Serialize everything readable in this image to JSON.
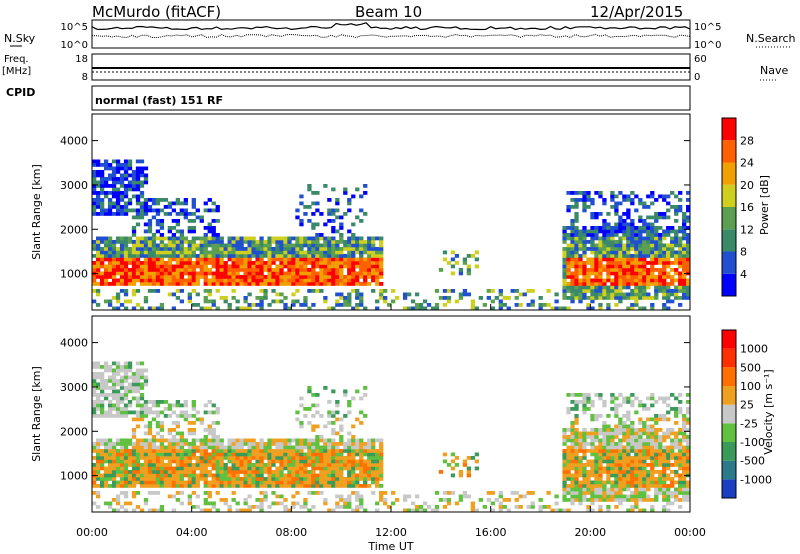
{
  "header": {
    "station": "McMurdo (fitACF)",
    "beam": "Beam 10",
    "date": "12/Apr/2015"
  },
  "top_panel": {
    "left_label": "N.Sky",
    "right_label": "N.Search",
    "tick_top": "10^5",
    "tick_bottom": "10^0",
    "freq_label": "Freq.",
    "freq_unit": "[MHz]",
    "freq_ticks": [
      "18",
      "8"
    ],
    "nave_label": "Nave",
    "nave_ticks": [
      "60",
      "0"
    ],
    "cpid_label": "CPID",
    "cpid_text": "normal (fast) 151 RF"
  },
  "chart_data": [
    {
      "type": "heatmap",
      "name": "power",
      "ylabel": "Slant Range [km]",
      "yticks": [
        1000,
        2000,
        3000,
        4000
      ],
      "ylim": [
        180,
        4600
      ],
      "xlim": [
        0,
        24
      ],
      "colorbar_label": "Power [dB]",
      "colorbar_ticks": [
        "28",
        "24",
        "20",
        "16",
        "12",
        "8",
        "4"
      ],
      "colorbar_colors": [
        "#0000ff",
        "#2050d0",
        "#3a8a6a",
        "#5aa050",
        "#cfcf20",
        "#f0a000",
        "#ff6000",
        "#ff0000"
      ]
    },
    {
      "type": "heatmap",
      "name": "velocity",
      "ylabel": "Slant Range [km]",
      "yticks": [
        1000,
        2000,
        3000,
        4000
      ],
      "ylim": [
        180,
        4600
      ],
      "xlim": [
        0,
        24
      ],
      "colorbar_label": "Velocity [m s⁻¹]",
      "colorbar_ticks": [
        "1000",
        "500",
        "100",
        "25",
        "-25",
        "-100",
        "-500",
        "-1000"
      ],
      "colorbar_colors": [
        "#1a3fc0",
        "#2a7a8a",
        "#3a9a5a",
        "#60c040",
        "#c8c8c8",
        "#f0a020",
        "#ff7000",
        "#ff3000",
        "#ff0000"
      ],
      "xticks": [
        "00:00",
        "04:00",
        "08:00",
        "12:00",
        "16:00",
        "20:00",
        "00:00"
      ],
      "xlabel": "Time UT"
    }
  ]
}
